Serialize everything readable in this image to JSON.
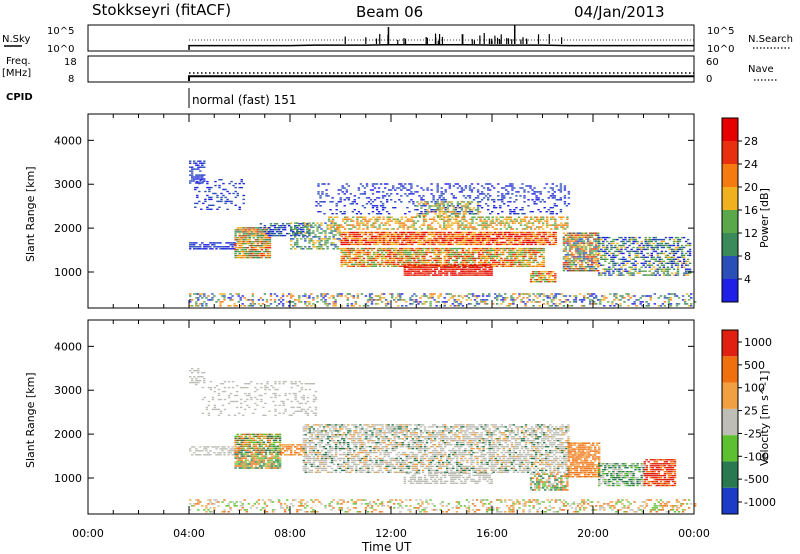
{
  "header": {
    "title": "Stokkseyri (fitACF)",
    "beam": "Beam 06",
    "date": "04/Jan/2013"
  },
  "noise_panel": {
    "left_label": "N.Sky",
    "right_label": "N.Search",
    "left_ticks": [
      "10^5",
      "10^0"
    ],
    "right_ticks": [
      "10^5",
      "10^0"
    ]
  },
  "freq_panel": {
    "left_label_1": "Freq.",
    "left_label_2": "[MHz]",
    "right_label": "Nave",
    "left_ticks": [
      "18",
      "8"
    ],
    "right_ticks": [
      "60",
      "0"
    ]
  },
  "cpid_panel": {
    "label": "CPID",
    "mode_text": "normal (fast) 151"
  },
  "time_axis": {
    "label": "Time UT",
    "ticks": [
      "00:00",
      "04:00",
      "08:00",
      "12:00",
      "16:00",
      "20:00",
      "00:00"
    ]
  },
  "colors": {
    "power_scale": [
      "#1f1fe6",
      "#2a4fb8",
      "#3a8a5a",
      "#5aa84a",
      "#f0b020",
      "#f57a10",
      "#e83010",
      "#e60000"
    ],
    "velocity_scale": [
      "#1c3cc8",
      "#2a7850",
      "#5cc030",
      "#bebeb6",
      "#f0a040",
      "#f07010",
      "#e02010"
    ],
    "ground_scatter": "#bebeb6"
  },
  "chart_data": [
    {
      "type": "line",
      "title": "",
      "xlabel": "",
      "ylabel": "N.Sky",
      "x_range_hours": [
        0,
        24
      ],
      "data_start_hour": 4,
      "ylim": [
        "10^0",
        "10^5"
      ],
      "series": [
        {
          "name": "N.Sky",
          "values_log10": [
            0.0,
            1.0,
            1.0,
            1.0,
            1.0,
            1.1,
            1.1,
            1.1,
            1.2,
            1.2,
            1.2,
            1.2,
            1.1,
            1.1,
            1.1,
            1.0,
            1.0,
            1.0,
            1.0,
            1.0,
            1.0
          ]
        }
      ]
    },
    {
      "type": "line",
      "title": "",
      "xlabel": "",
      "ylabel": "Freq. [MHz]",
      "x_range_hours": [
        0,
        24
      ],
      "data_start_hour": 4,
      "ylim": [
        8,
        18
      ],
      "y2label": "Nave",
      "y2lim": [
        0,
        60
      ],
      "series": [
        {
          "name": "Freq.",
          "value": 10
        },
        {
          "name": "Nave",
          "value": 20
        }
      ]
    },
    {
      "type": "heatmap",
      "title": "",
      "xlabel": "Time UT",
      "ylabel": "Slant Range [km]",
      "x_range_hours": [
        0,
        24
      ],
      "ylim": [
        180,
        4600
      ],
      "y_ticks": [
        1000,
        2000,
        3000,
        4000
      ],
      "colorbar_label": "Power [dB]",
      "colorbar_ticks": [
        "4",
        "8",
        "12",
        "16",
        "20",
        "24",
        "28"
      ]
    },
    {
      "type": "heatmap",
      "title": "",
      "xlabel": "Time UT",
      "ylabel": "Slant Range [km]",
      "x_range_hours": [
        0,
        24
      ],
      "ylim": [
        180,
        4600
      ],
      "y_ticks": [
        1000,
        2000,
        3000,
        4000
      ],
      "colorbar_label": "Velocity [m s^-1]",
      "colorbar_ticks": [
        "1000",
        "500",
        "100",
        "25",
        "-25",
        "-100",
        "-500",
        "-1000"
      ]
    }
  ]
}
